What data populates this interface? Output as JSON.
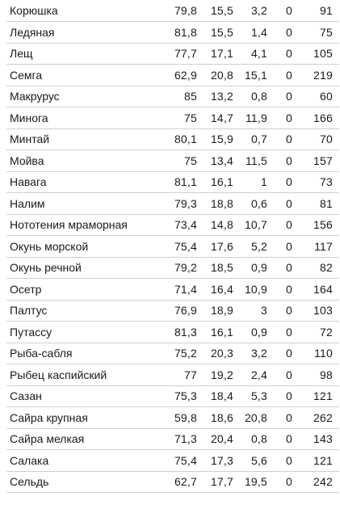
{
  "table": {
    "rows": [
      {
        "name": "Корюшка",
        "v1": "79,8",
        "v2": "15,5",
        "v3": "3,2",
        "v4": "0",
        "v5": "91"
      },
      {
        "name": "Ледяная",
        "v1": "81,8",
        "v2": "15,5",
        "v3": "1,4",
        "v4": "0",
        "v5": "75"
      },
      {
        "name": "Лещ",
        "v1": "77,7",
        "v2": "17,1",
        "v3": "4,1",
        "v4": "0",
        "v5": "105"
      },
      {
        "name": "Семга",
        "v1": "62,9",
        "v2": "20,8",
        "v3": "15,1",
        "v4": "0",
        "v5": "219"
      },
      {
        "name": "Макрурус",
        "v1": "85",
        "v2": "13,2",
        "v3": "0,8",
        "v4": "0",
        "v5": "60"
      },
      {
        "name": "Минога",
        "v1": "75",
        "v2": "14,7",
        "v3": "11,9",
        "v4": "0",
        "v5": "166"
      },
      {
        "name": "Минтай",
        "v1": "80,1",
        "v2": "15,9",
        "v3": "0,7",
        "v4": "0",
        "v5": "70"
      },
      {
        "name": "Мойва",
        "v1": "75",
        "v2": "13,4",
        "v3": "11,5",
        "v4": "0",
        "v5": "157"
      },
      {
        "name": "Навага",
        "v1": "81,1",
        "v2": "16,1",
        "v3": "1",
        "v4": "0",
        "v5": "73"
      },
      {
        "name": "Налим",
        "v1": "79,3",
        "v2": "18,8",
        "v3": "0,6",
        "v4": "0",
        "v5": "81"
      },
      {
        "name": "Нототения мраморная",
        "v1": "73,4",
        "v2": "14,8",
        "v3": "10,7",
        "v4": "0",
        "v5": "156"
      },
      {
        "name": "Окунь морской",
        "v1": "75,4",
        "v2": "17,6",
        "v3": "5,2",
        "v4": "0",
        "v5": "117"
      },
      {
        "name": "Окунь речной",
        "v1": "79,2",
        "v2": "18,5",
        "v3": "0,9",
        "v4": "0",
        "v5": "82"
      },
      {
        "name": "Осетр",
        "v1": "71,4",
        "v2": "16,4",
        "v3": "10,9",
        "v4": "0",
        "v5": "164"
      },
      {
        "name": "Палтус",
        "v1": "76,9",
        "v2": "18,9",
        "v3": "3",
        "v4": "0",
        "v5": "103"
      },
      {
        "name": "Путассу",
        "v1": "81,3",
        "v2": "16,1",
        "v3": "0,9",
        "v4": "0",
        "v5": "72"
      },
      {
        "name": "Рыба-сабля",
        "v1": "75,2",
        "v2": "20,3",
        "v3": "3,2",
        "v4": "0",
        "v5": "110"
      },
      {
        "name": "Рыбец каспийский",
        "v1": "77",
        "v2": "19,2",
        "v3": "2,4",
        "v4": "0",
        "v5": "98"
      },
      {
        "name": "Сазан",
        "v1": "75,3",
        "v2": "18,4",
        "v3": "5,3",
        "v4": "0",
        "v5": "121"
      },
      {
        "name": "Сайра крупная",
        "v1": "59,8",
        "v2": "18,6",
        "v3": "20,8",
        "v4": "0",
        "v5": "262"
      },
      {
        "name": "Сайра мелкая",
        "v1": "71,3",
        "v2": "20,4",
        "v3": "0,8",
        "v4": "0",
        "v5": "143"
      },
      {
        "name": "Салака",
        "v1": "75,4",
        "v2": "17,3",
        "v3": "5,6",
        "v4": "0",
        "v5": "121"
      },
      {
        "name": "Сельдь",
        "v1": "62,7",
        "v2": "17,7",
        "v3": "19,5",
        "v4": "0",
        "v5": "242"
      }
    ]
  }
}
